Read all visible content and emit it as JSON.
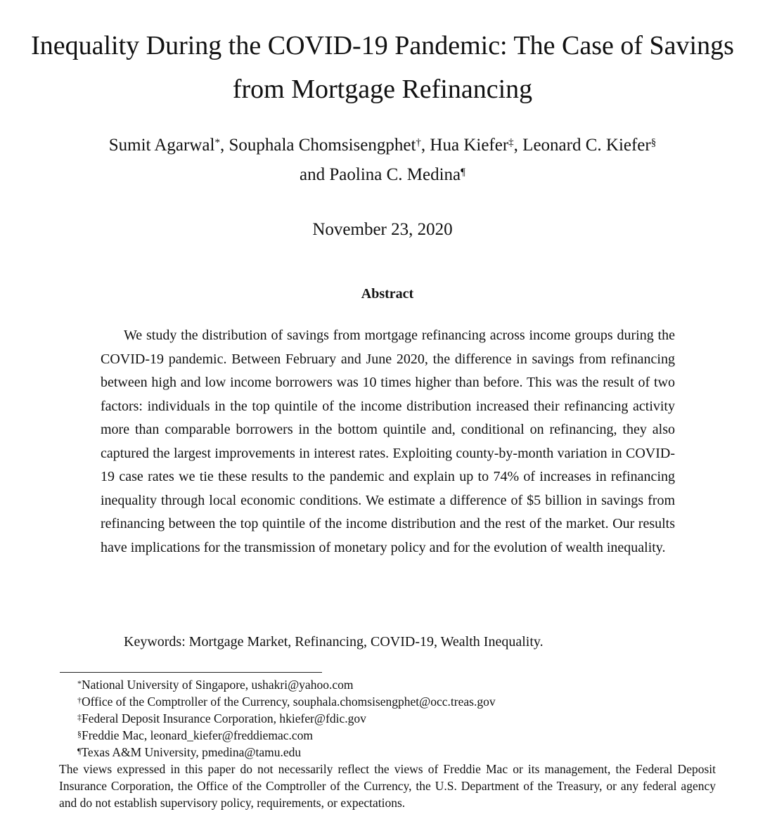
{
  "paper": {
    "title": "Inequality During the COVID-19 Pandemic: The Case of Savings from Mortgage Refinancing",
    "authors": [
      {
        "name": "Sumit Agarwal",
        "mark": "*",
        "sep": ", "
      },
      {
        "name": "Souphala Chomsisengphet",
        "mark": "†",
        "sep": ", "
      },
      {
        "name": "Hua Kiefer",
        "mark": "‡",
        "sep": ", "
      },
      {
        "name": "Leonard C. Kiefer",
        "mark": "§",
        "sep": ""
      },
      {
        "name": "and Paolina C. Medina",
        "mark": "¶",
        "sep": ""
      }
    ],
    "date": "November 23, 2020",
    "abstract_heading": "Abstract",
    "abstract_text": "We study the distribution of savings from mortgage refinancing across income groups during the COVID-19 pandemic. Between February and June 2020, the difference in savings from refinancing between high and low income borrowers was 10 times higher than before. This was the result of two factors: individuals in the top quintile of the income distribution increased their refinancing activity more than comparable borrowers in the bottom quintile and, conditional on refinancing, they also captured the largest improvements in interest rates. Exploiting county-by-month variation in COVID-19 case rates we tie these results to the pandemic and explain up to 74% of increases in refinancing inequality through local economic conditions. We estimate a difference of $5 billion in savings from refinancing between the top quintile of the income distribution and the rest of the market. Our results have implications for the transmission of monetary policy and for the evolution of wealth inequality.",
    "keywords": "Keywords: Mortgage Market, Refinancing, COVID-19, Wealth Inequality.",
    "footnotes": [
      {
        "mark": "*",
        "text": "National University of Singapore, ushakri@yahoo.com"
      },
      {
        "mark": "†",
        "text": "Office of the Comptroller of the Currency, souphala.chomsisengphet@occ.treas.gov"
      },
      {
        "mark": "‡",
        "text": "Federal Deposit Insurance Corporation, hkiefer@fdic.gov"
      },
      {
        "mark": "§",
        "text": "Freddie Mac, leonard_kiefer@freddiemac.com"
      },
      {
        "mark": "¶",
        "text": "Texas A&M University, pmedina@tamu.edu"
      }
    ],
    "disclaimer": "The views expressed in this paper do not necessarily reflect the views of Freddie Mac or its management, the Federal Deposit Insurance Corporation, the Office of the Comptroller of the Currency, the U.S. Department of the Treasury, or any federal agency and do not establish supervisory policy, requirements, or expectations."
  }
}
